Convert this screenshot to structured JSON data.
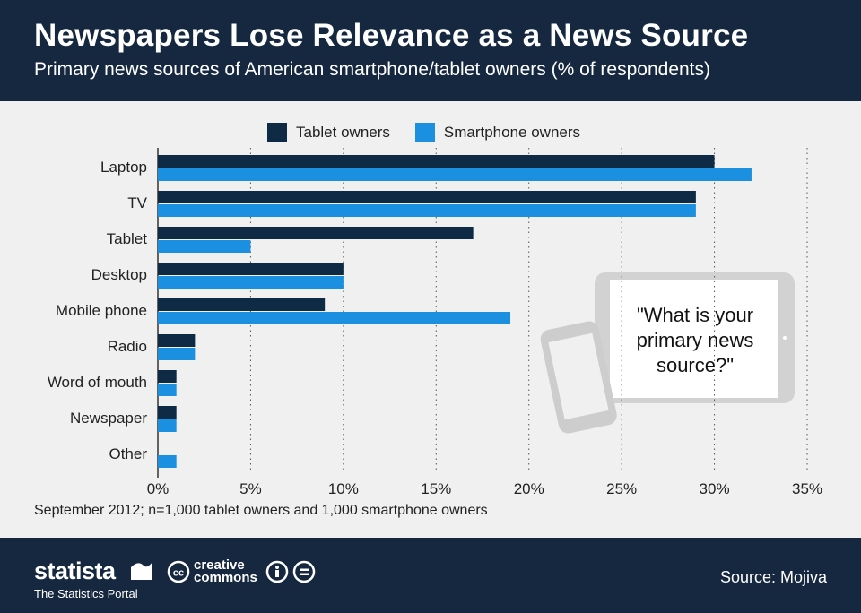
{
  "header": {
    "title": "Newspapers Lose Relevance as a News Source",
    "subtitle": "Primary news sources of American smartphone/tablet owners (% of respondents)"
  },
  "colors": {
    "header_bg": "#16283f",
    "tablet": "#0f2a45",
    "smartphone": "#1b8fe0",
    "background": "#f0f0f0"
  },
  "chart_data": {
    "type": "bar",
    "orientation": "horizontal",
    "categories": [
      "Laptop",
      "TV",
      "Tablet",
      "Desktop",
      "Mobile phone",
      "Radio",
      "Word of mouth",
      "Newspaper",
      "Other"
    ],
    "series": [
      {
        "name": "Tablet owners",
        "values": [
          30,
          29,
          17,
          10,
          9,
          2,
          1,
          1,
          0
        ]
      },
      {
        "name": "Smartphone owners",
        "values": [
          32,
          29,
          5,
          10,
          19,
          2,
          1,
          1,
          1
        ]
      }
    ],
    "xlim": [
      0,
      35
    ],
    "xticks": [
      "0%",
      "5%",
      "10%",
      "15%",
      "20%",
      "25%",
      "30%",
      "35%"
    ],
    "grid": "vertical dotted",
    "legend_position": "top",
    "annotation": "\"What is your primary news source?\""
  },
  "note": "September 2012; n=1,000 tablet owners and 1,000 smartphone owners",
  "footer": {
    "brand": "statista",
    "brand_tagline": "The Statistics Portal",
    "cc_line1": "creative",
    "cc_line2": "commons",
    "source": "Source: Mojiva"
  }
}
